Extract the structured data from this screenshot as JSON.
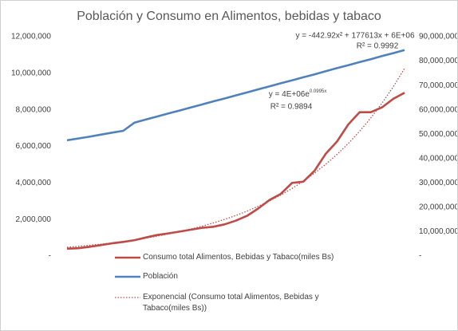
{
  "chart_data": {
    "type": "line",
    "title": "Población y Consumo en Alimentos, bebidas y tabaco",
    "ylim": [
      0,
      12000000
    ],
    "yticks": [
      {
        "value": 0,
        "label": "-"
      },
      {
        "value": 2000000,
        "label": "2,000,000"
      },
      {
        "value": 4000000,
        "label": "4,000,000"
      },
      {
        "value": 6000000,
        "label": "6,000,000"
      },
      {
        "value": 8000000,
        "label": "8,000,000"
      },
      {
        "value": 10000000,
        "label": "10,000,000"
      },
      {
        "value": 12000000,
        "label": "12,000,000"
      }
    ],
    "y2lim": [
      0,
      90000000
    ],
    "y2ticks": [
      {
        "value": 0,
        "label": "-"
      },
      {
        "value": 10000000,
        "label": "10,000,000"
      },
      {
        "value": 20000000,
        "label": "20,000,000"
      },
      {
        "value": 30000000,
        "label": "30,000,000"
      },
      {
        "value": 40000000,
        "label": "40,000,000"
      },
      {
        "value": 50000000,
        "label": "50,000,000"
      },
      {
        "value": 60000000,
        "label": "60,000,000"
      },
      {
        "value": 70000000,
        "label": "70,000,000"
      },
      {
        "value": 80000000,
        "label": "80,000,000"
      },
      {
        "value": 90000000,
        "label": "90,000,000"
      }
    ],
    "series": [
      {
        "name": "Consumo total Alimentos, Bebidas y Tabaco(miles Bs)",
        "color": "#be4b48",
        "axis": "y2",
        "style": "solid",
        "values": [
          3000000,
          3200000,
          3800000,
          4500000,
          5200000,
          5800000,
          6500000,
          7600000,
          8600000,
          9300000,
          10000000,
          10800000,
          11600000,
          12000000,
          13000000,
          14500000,
          16500000,
          19500000,
          23000000,
          25500000,
          30000000,
          30500000,
          35000000,
          42000000,
          47000000,
          54000000,
          59000000,
          59000000,
          61000000,
          64500000,
          67000000
        ]
      },
      {
        "name": "Población",
        "color": "#4f81bd",
        "style": "solid",
        "values": [
          6330000,
          6430000,
          6530000,
          6640000,
          6750000,
          6850000,
          7300000,
          7465000,
          7630000,
          7800000,
          7960000,
          8130000,
          8290000,
          8460000,
          8620000,
          8790000,
          8950000,
          9120000,
          9280000,
          9450000,
          9610000,
          9780000,
          9940000,
          10110000,
          10280000,
          10440000,
          10610000,
          10770000,
          10940000,
          11100000,
          11270000
        ]
      },
      {
        "name": "Exponencial (Consumo total Alimentos, Bebidas y Tabaco(miles Bs))",
        "color": "#be4b48",
        "axis": "y2",
        "style": "dotted",
        "values": [
          3600000,
          3990000,
          4420000,
          4890000,
          5410000,
          6000000,
          6640000,
          7350000,
          8140000,
          9020000,
          9990000,
          11060000,
          12250000,
          13570000,
          15030000,
          16640000,
          18430000,
          20410000,
          22600000,
          25030000,
          27720000,
          30700000,
          34000000,
          37660000,
          41700000,
          46190000,
          51150000,
          56650000,
          62740000,
          69480000,
          77000000
        ]
      }
    ],
    "annotations": [
      {
        "text": "y = -442.92x² + 177613x + 6E+06"
      },
      {
        "text": "R² = 0.9992"
      },
      {
        "text": "y = 4E+06e",
        "superscript": "0.0995x"
      },
      {
        "text": "R² = 0.9894"
      }
    ]
  }
}
